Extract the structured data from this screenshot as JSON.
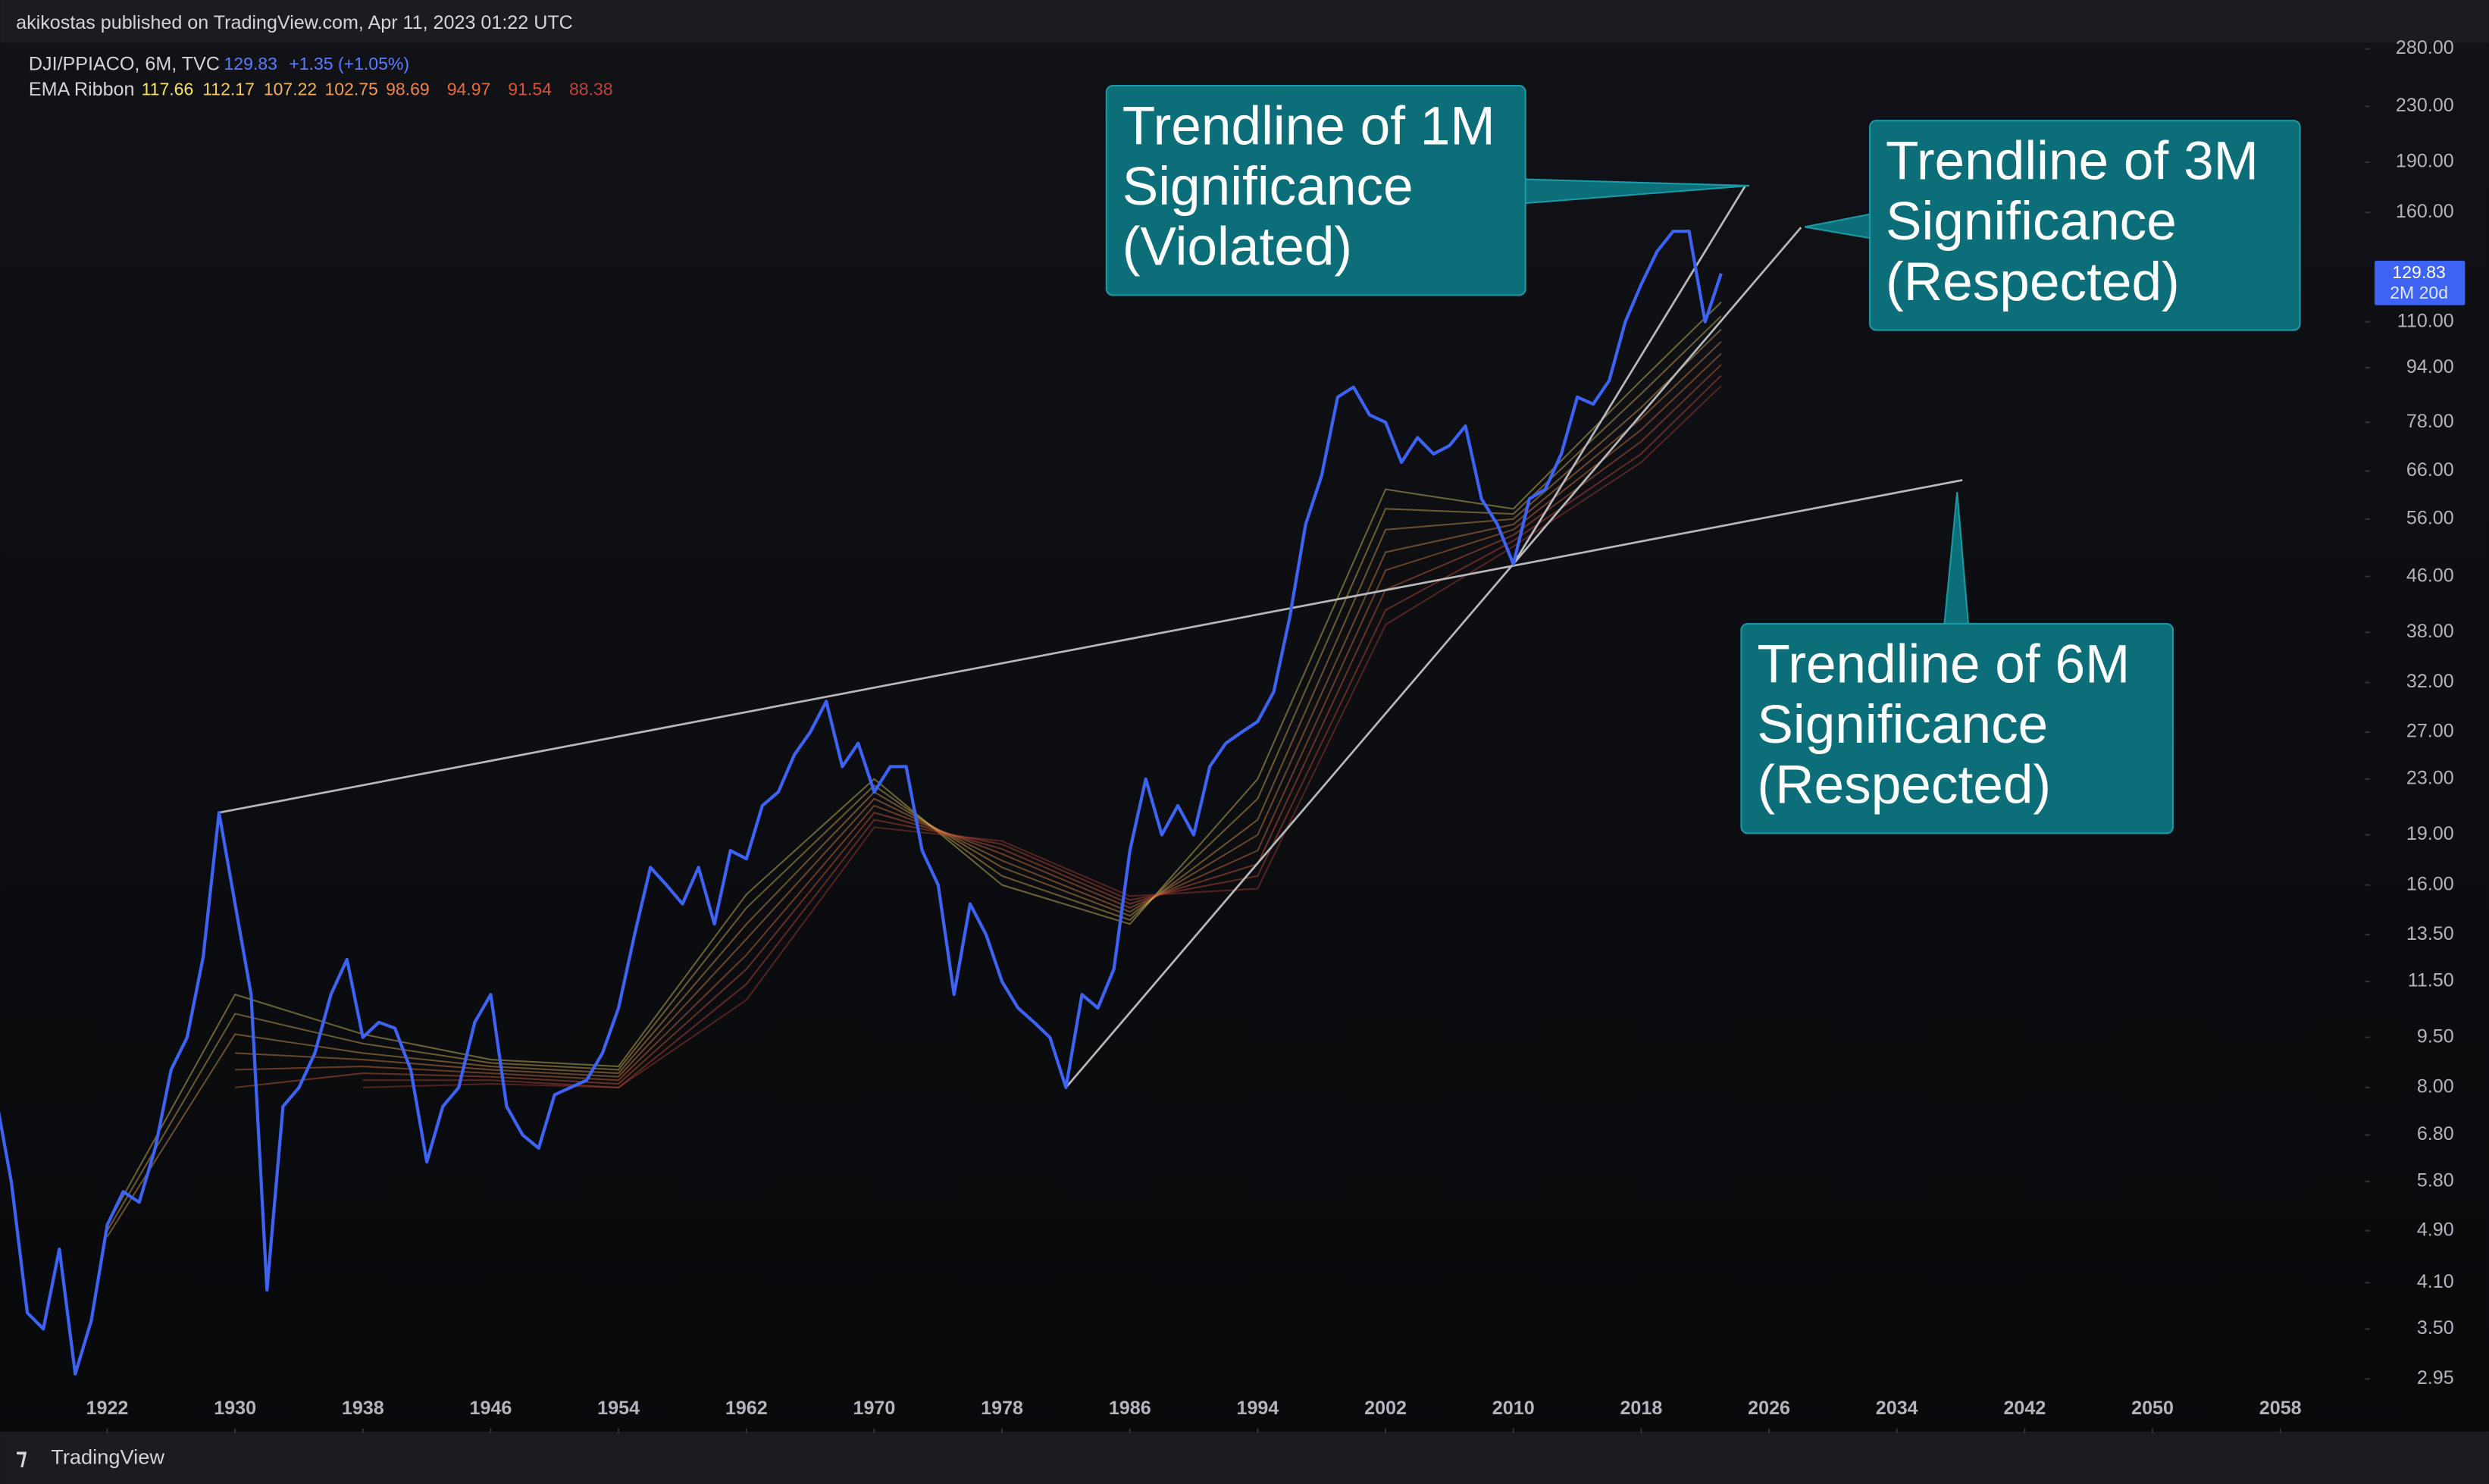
{
  "chart_data": {
    "type": "line",
    "publisher": "akikostas published on TradingView.com, Apr 11, 2023 01:22 UTC",
    "change": "+1.35 (+1.05%)",
    "countdown": "2M 20d",
    "brand": "TradingView",
    "log_scale": true,
    "xlim": [
      1915.3,
      2063.3
    ],
    "xticks": [
      1922,
      1930,
      1938,
      1946,
      1954,
      1962,
      1970,
      1978,
      1986,
      1994,
      2002,
      2010,
      2018,
      2026,
      2034,
      2042,
      2050,
      2058
    ],
    "ylim": [
      2.49,
      289
    ],
    "yticks": [
      {
        "value": 280,
        "label": "280.00"
      },
      {
        "value": 230,
        "label": "230.00"
      },
      {
        "value": 190,
        "label": "190.00"
      },
      {
        "value": 160,
        "label": "160.00"
      },
      {
        "value": 110,
        "label": "110.00"
      },
      {
        "value": 94,
        "label": "94.00"
      },
      {
        "value": 78,
        "label": "78.00"
      },
      {
        "value": 66,
        "label": "66.00"
      },
      {
        "value": 56,
        "label": "56.00"
      },
      {
        "value": 46,
        "label": "46.00"
      },
      {
        "value": 38,
        "label": "38.00"
      },
      {
        "value": 32,
        "label": "32.00"
      },
      {
        "value": 27,
        "label": "27.00"
      },
      {
        "value": 23,
        "label": "23.00"
      },
      {
        "value": 19,
        "label": "19.00"
      },
      {
        "value": 16,
        "label": "16.00"
      },
      {
        "value": 13.5,
        "label": "13.50"
      },
      {
        "value": 11.5,
        "label": "11.50"
      },
      {
        "value": 9.5,
        "label": "9.50"
      },
      {
        "value": 8,
        "label": "8.00"
      },
      {
        "value": 6.8,
        "label": "6.80"
      },
      {
        "value": 5.8,
        "label": "5.80"
      },
      {
        "value": 4.9,
        "label": "4.90"
      },
      {
        "value": 4.1,
        "label": "4.10"
      },
      {
        "value": 3.5,
        "label": "3.50"
      },
      {
        "value": 2.95,
        "label": "2.95"
      }
    ],
    "series": [
      {
        "name": "DJI/PPIACO, 6M, TVC",
        "color": "#3d63f5",
        "x": [
          1915,
          1916,
          1917,
          1918,
          1919,
          1920,
          1921,
          1922,
          1923,
          1924,
          1925,
          1926,
          1927,
          1928,
          1929,
          1930,
          1931,
          1932,
          1933,
          1934,
          1935,
          1936,
          1937,
          1938,
          1939,
          1940,
          1941,
          1942,
          1943,
          1944,
          1945,
          1946,
          1947,
          1948,
          1949,
          1950,
          1951,
          1952,
          1953,
          1954,
          1955,
          1956,
          1957,
          1958,
          1959,
          1960,
          1961,
          1962,
          1963,
          1964,
          1965,
          1966,
          1967,
          1968,
          1969,
          1970,
          1971,
          1972,
          1973,
          1974,
          1975,
          1976,
          1977,
          1978,
          1979,
          1980,
          1981,
          1982,
          1983,
          1984,
          1985,
          1986,
          1987,
          1988,
          1989,
          1990,
          1991,
          1992,
          1993,
          1994,
          1995,
          1996,
          1997,
          1998,
          1999,
          2000,
          2001,
          2002,
          2003,
          2004,
          2005,
          2006,
          2007,
          2008,
          2009,
          2010,
          2011,
          2012,
          2013,
          2014,
          2015,
          2016,
          2017,
          2018,
          2019,
          2020,
          2021,
          2022,
          2023
        ],
        "values": [
          7.8,
          5.8,
          3.7,
          3.5,
          4.6,
          3.0,
          3.6,
          5.0,
          5.6,
          5.4,
          6.5,
          8.5,
          9.5,
          12.5,
          20.5,
          15,
          11,
          4.0,
          7.5,
          8,
          9,
          11,
          12.4,
          9.5,
          10,
          9.8,
          8.5,
          6.2,
          7.5,
          8,
          10,
          11,
          7.5,
          6.8,
          6.5,
          7.8,
          8,
          8.2,
          9,
          10.5,
          13.5,
          17,
          16,
          15,
          17,
          14,
          18,
          17.5,
          21,
          22,
          25,
          27,
          30,
          24,
          26,
          22,
          24,
          24,
          18,
          16,
          11,
          15,
          13.5,
          11.5,
          10.5,
          10,
          9.5,
          8.0,
          11,
          10.5,
          12,
          18,
          23,
          19,
          21,
          19,
          24,
          26,
          27,
          28,
          31,
          40,
          55,
          65,
          85,
          88,
          80,
          78,
          68,
          74,
          70,
          72,
          77,
          60,
          55,
          48,
          60,
          62,
          70,
          85,
          83,
          90,
          110,
          125,
          140,
          150,
          150,
          110,
          129.83
        ]
      }
    ],
    "ribbon": {
      "name": "EMA Ribbon",
      "x": [
        1922,
        1930,
        1938,
        1946,
        1954,
        1962,
        1970,
        1978,
        1986,
        1994,
        2002,
        2010,
        2018,
        2023
      ],
      "lines": [
        {
          "color": "#f7e26b",
          "values": [
            5.0,
            11.0,
            9.6,
            8.8,
            8.6,
            15.5,
            23.0,
            16.0,
            14.0,
            23.0,
            62,
            58,
            90,
            117.66
          ]
        },
        {
          "color": "#f5cb62",
          "values": [
            4.9,
            10.3,
            9.3,
            8.7,
            8.5,
            14.8,
            22.5,
            16.5,
            14.2,
            21.5,
            58,
            57,
            86,
            112.17
          ]
        },
        {
          "color": "#f3b35a",
          "values": [
            4.8,
            9.6,
            9.0,
            8.6,
            8.4,
            14.0,
            22.0,
            17.0,
            14.4,
            20.0,
            54,
            56,
            82,
            107.22
          ]
        },
        {
          "color": "#f09b52",
          "values": [
            null,
            9.0,
            8.8,
            8.5,
            8.3,
            13.3,
            21.5,
            17.4,
            14.6,
            19.0,
            50,
            55,
            79,
            102.75
          ]
        },
        {
          "color": "#ec8149",
          "values": [
            null,
            8.5,
            8.6,
            8.4,
            8.2,
            12.6,
            21.0,
            17.8,
            14.8,
            18.0,
            47,
            54,
            76,
            98.69
          ]
        },
        {
          "color": "#e46a40",
          "values": [
            null,
            8.0,
            8.4,
            8.3,
            8.1,
            12.0,
            20.5,
            18.1,
            15.0,
            17.2,
            44,
            53,
            73,
            94.97
          ]
        },
        {
          "color": "#d9553a",
          "values": [
            null,
            null,
            8.2,
            8.2,
            8.0,
            11.4,
            20.0,
            18.4,
            15.2,
            16.5,
            41,
            52,
            70,
            91.54
          ]
        },
        {
          "color": "#b8443a",
          "values": [
            null,
            null,
            8.0,
            8.1,
            8.0,
            10.8,
            19.5,
            18.6,
            15.4,
            15.8,
            39,
            51,
            68,
            88.38
          ]
        }
      ]
    },
    "trendlines": [
      {
        "x": [
          2010,
          2024.5
        ],
        "values": [
          48,
          175
        ]
      },
      {
        "x": [
          1982,
          2028
        ],
        "values": [
          8.0,
          152
        ]
      },
      {
        "x": [
          1929,
          2038.1
        ],
        "values": [
          20.5,
          64
        ]
      }
    ],
    "annotations": [
      {
        "lines": [
          "Trendline of 1M",
          "Significance",
          "(Violated)"
        ]
      },
      {
        "lines": [
          "Trendline of 3M",
          "Significance",
          "(Respected)"
        ]
      },
      {
        "lines": [
          "Trendline of 6M",
          "Significance",
          "(Respected)"
        ]
      }
    ]
  }
}
